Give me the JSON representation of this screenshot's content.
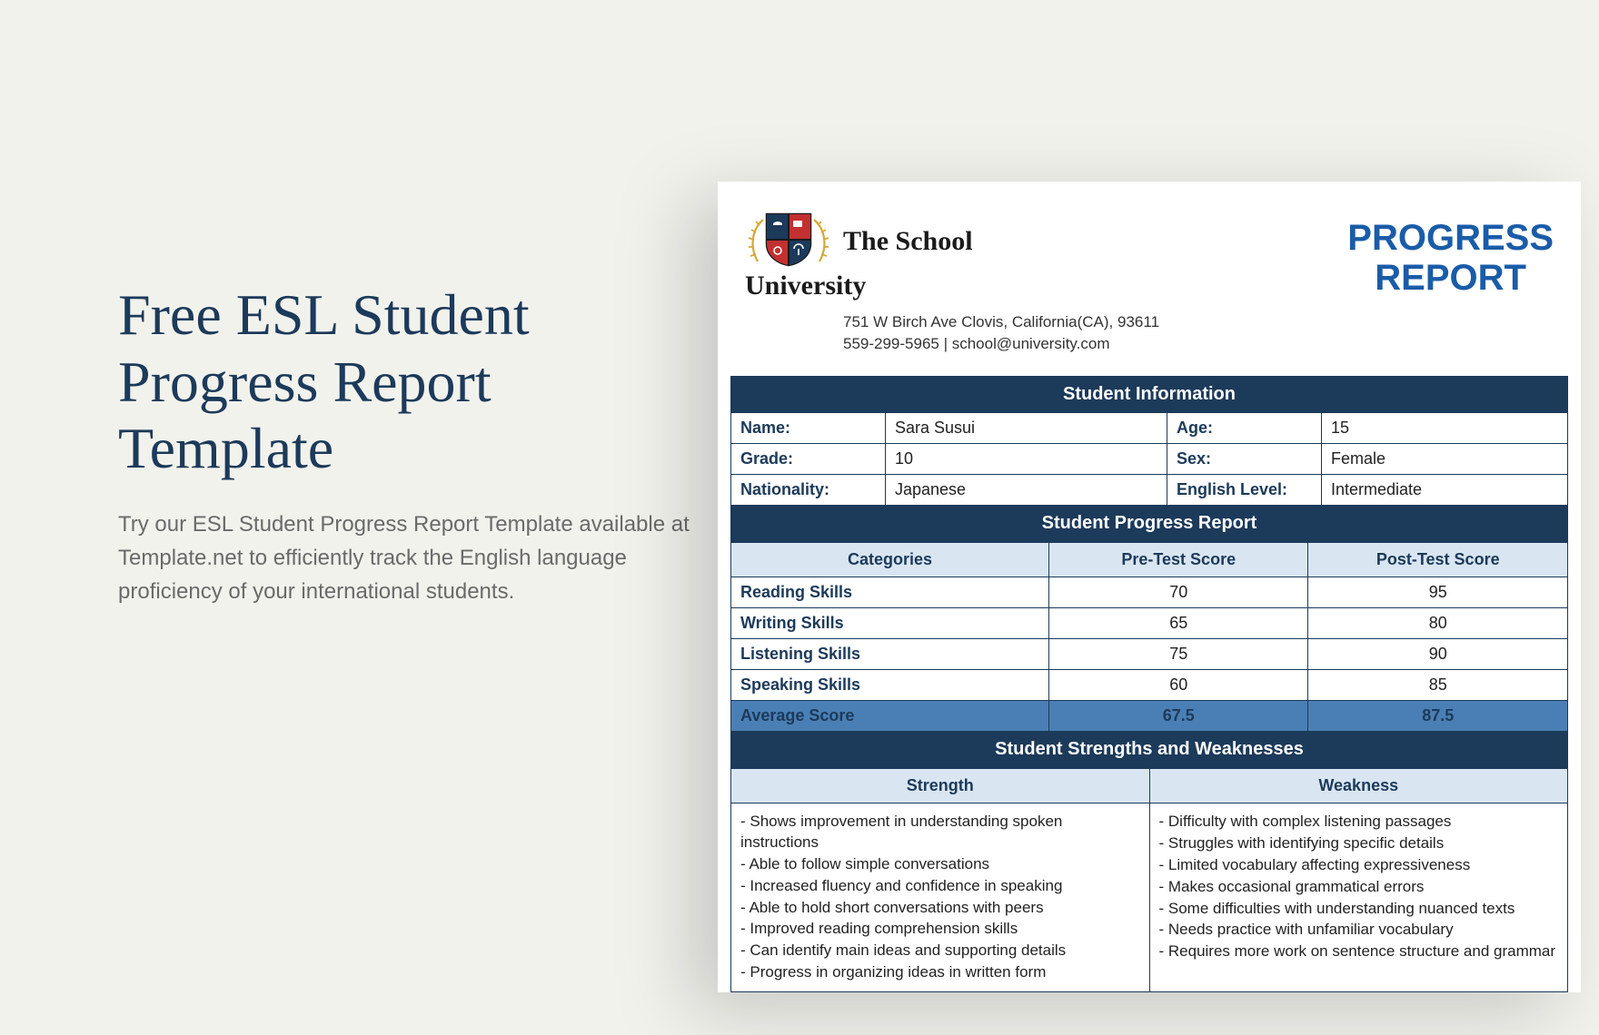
{
  "left": {
    "headline": "Free ESL Student Progress Report Template",
    "subtext": "Try our ESL Student Progress Report Template available at Template.net to efficiently track the English language proficiency of your international students."
  },
  "doc": {
    "brand_line1": "The School",
    "brand_line2": "University",
    "address": "751 W Birch Ave Clovis, California(CA), 93611",
    "contact": "559-299-5965 | school@university.com",
    "progress_title_1": "PROGRESS",
    "progress_title_2": "REPORT",
    "logo_colors": {
      "laurel": "#d4a938",
      "q1": "#1c3a5a",
      "q2": "#c23030",
      "q3": "#c23030",
      "q4": "#1c3a5a",
      "border": "#1a1a1a"
    }
  },
  "sections": {
    "student_info_header": "Student Information",
    "progress_header": "Student Progress Report",
    "sw_header": "Student Strengths and Weaknesses"
  },
  "info": {
    "name_label": "Name:",
    "name": "Sara Susui",
    "age_label": "Age:",
    "age": "15",
    "grade_label": "Grade:",
    "grade": "10",
    "sex_label": "Sex:",
    "sex": "Female",
    "nat_label": "Nationality:",
    "nat": "Japanese",
    "eng_label": "English Level:",
    "eng": "Intermediate"
  },
  "scores": {
    "col_cat": "Categories",
    "col_pre": "Pre-Test Score",
    "col_post": "Post-Test Score",
    "rows": [
      {
        "cat": "Reading Skills",
        "pre": "70",
        "post": "95"
      },
      {
        "cat": "Writing Skills",
        "pre": "65",
        "post": "80"
      },
      {
        "cat": "Listening Skills",
        "pre": "75",
        "post": "90"
      },
      {
        "cat": "Speaking Skills",
        "pre": "60",
        "post": "85"
      }
    ],
    "avg_label": "Average Score",
    "avg_pre": "67.5",
    "avg_post": "87.5"
  },
  "sw": {
    "strength_label": "Strength",
    "weakness_label": "Weakness",
    "strengths": [
      "- Shows improvement in understanding spoken instructions",
      "- Able to follow simple conversations",
      "- Increased fluency and confidence in speaking",
      "- Able to hold short conversations with peers",
      "- Improved reading comprehension skills",
      "- Can identify main ideas and supporting details",
      "- Progress in organizing ideas in written form"
    ],
    "weaknesses": [
      "- Difficulty with complex listening passages",
      "- Struggles with identifying specific details",
      "- Limited vocabulary affecting expressiveness",
      "- Makes occasional grammatical errors",
      "- Some difficulties with understanding nuanced texts",
      "- Needs practice with unfamiliar vocabulary",
      "- Requires more work on sentence structure and grammar"
    ]
  },
  "colors": {
    "page_bg": "#f2f2ed",
    "headline": "#1c3a5a",
    "dark_header": "#1c3a5a",
    "sub_header": "#d9e6f2",
    "avg_row": "#4a7fb5",
    "link_blue": "#1a5ca8"
  }
}
